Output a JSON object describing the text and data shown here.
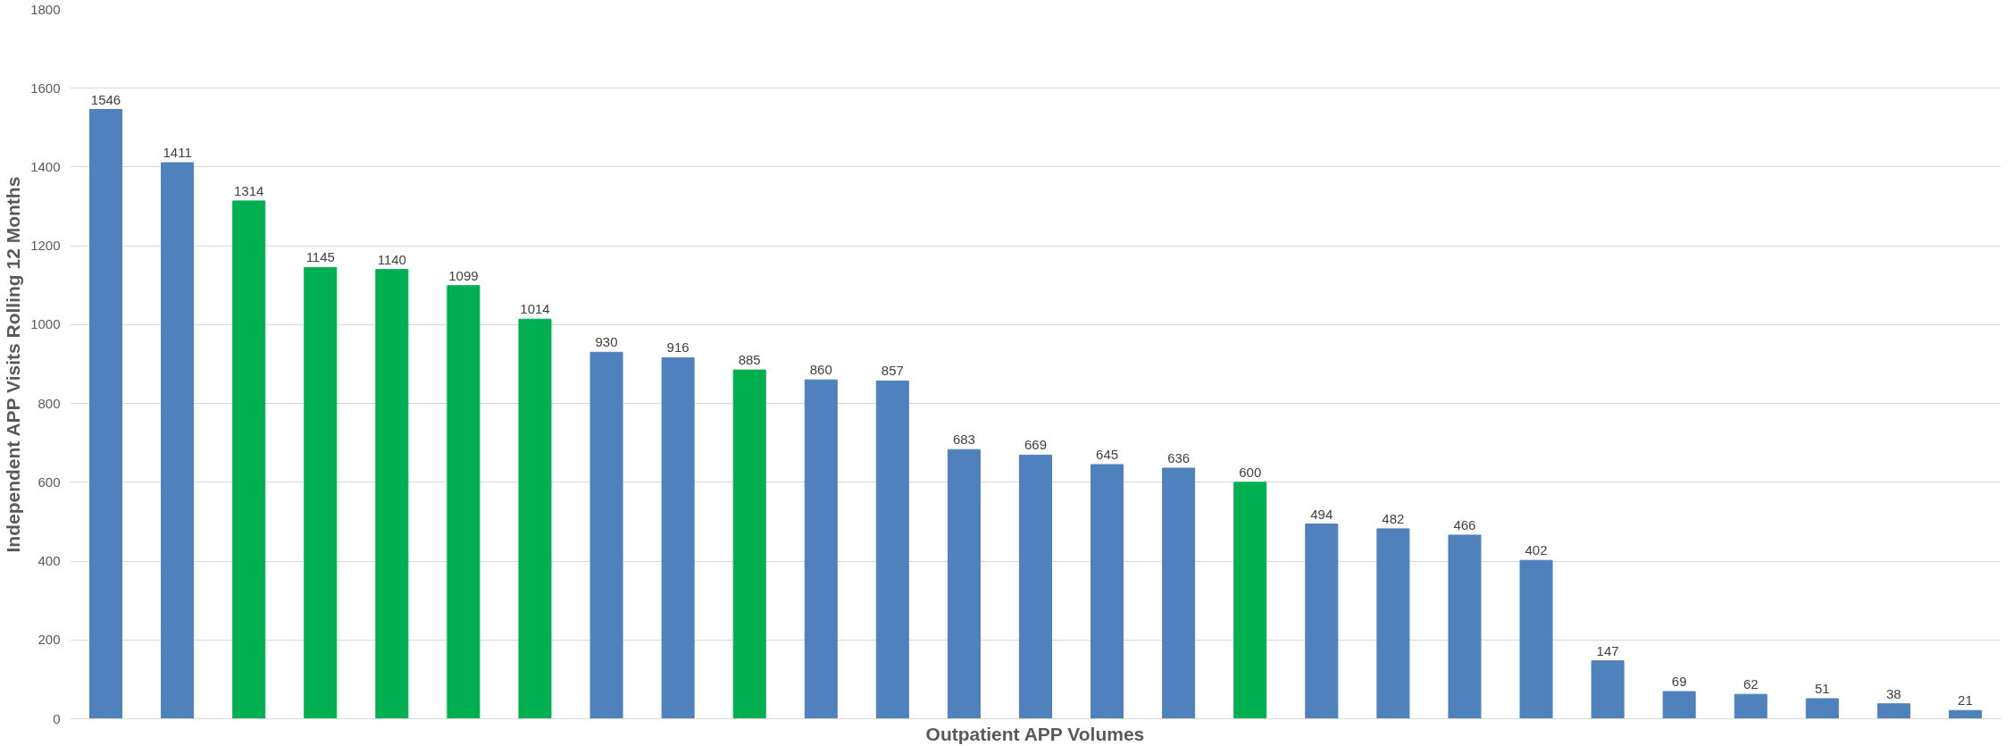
{
  "chart_data": {
    "type": "bar",
    "xlabel": "Outpatient APP Volumes",
    "ylabel": "Independent APP Visits Rolling 12 Months",
    "categories": [
      null,
      null,
      null,
      null,
      null,
      null,
      null,
      null,
      null,
      null,
      null,
      null,
      null,
      null,
      null,
      null,
      null,
      null,
      null,
      null,
      null,
      null,
      null,
      null,
      null,
      null,
      null
    ],
    "values": [
      1546,
      1411,
      1314,
      1145,
      1140,
      1099,
      1014,
      930,
      916,
      885,
      860,
      857,
      683,
      669,
      645,
      636,
      600,
      494,
      482,
      466,
      402,
      147,
      69,
      62,
      51,
      38,
      21
    ],
    "colors": [
      "#4f81bd",
      "#4f81bd",
      "#00b050",
      "#00b050",
      "#00b050",
      "#00b050",
      "#00b050",
      "#4f81bd",
      "#4f81bd",
      "#00b050",
      "#4f81bd",
      "#4f81bd",
      "#4f81bd",
      "#4f81bd",
      "#4f81bd",
      "#4f81bd",
      "#00b050",
      "#4f81bd",
      "#4f81bd",
      "#4f81bd",
      "#4f81bd",
      "#4f81bd",
      "#4f81bd",
      "#4f81bd",
      "#4f81bd",
      "#4f81bd",
      "#4f81bd"
    ],
    "ylim": [
      0,
      1800
    ],
    "yticks": [
      0,
      200,
      400,
      600,
      800,
      1000,
      1200,
      1400,
      1600,
      1800
    ],
    "grid": "y",
    "data_labels": true
  }
}
